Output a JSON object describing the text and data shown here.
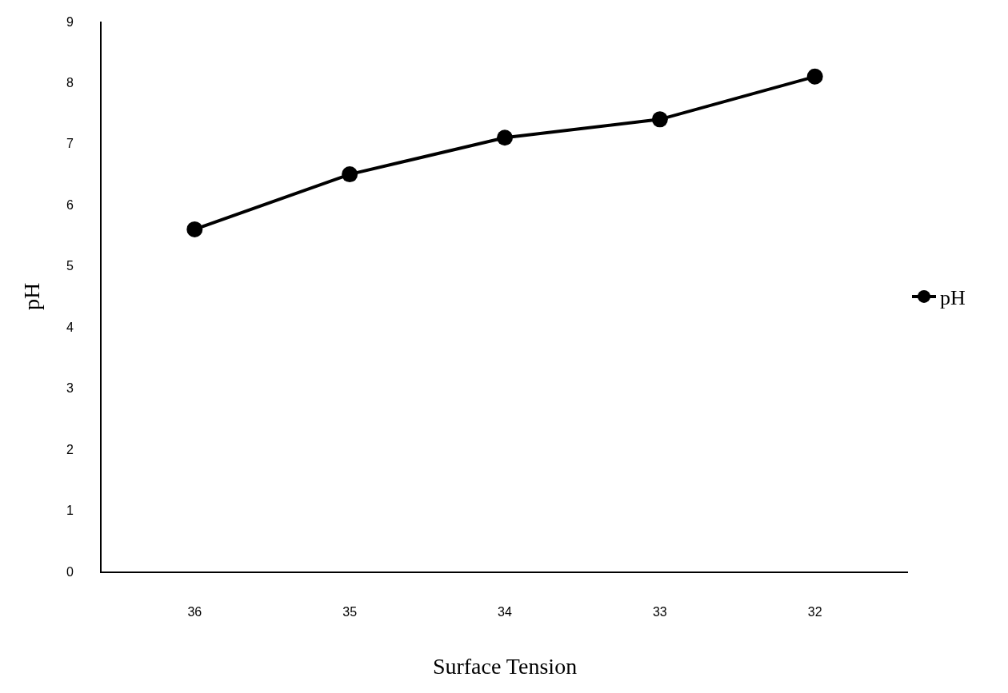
{
  "chart_data": {
    "type": "line",
    "xlabel": "Surface Tension",
    "ylabel": "pH",
    "categories": [
      "36",
      "35",
      "34",
      "33",
      "32"
    ],
    "series": [
      {
        "name": "pH",
        "color": "#000000",
        "values": [
          5.6,
          6.5,
          7.1,
          7.4,
          8.1
        ]
      }
    ],
    "ylim": [
      0,
      9
    ],
    "yticks": [
      0,
      1,
      2,
      3,
      4,
      5,
      6,
      7,
      8,
      9
    ],
    "legend": "right",
    "marker": "circle",
    "line_style": "solid"
  }
}
